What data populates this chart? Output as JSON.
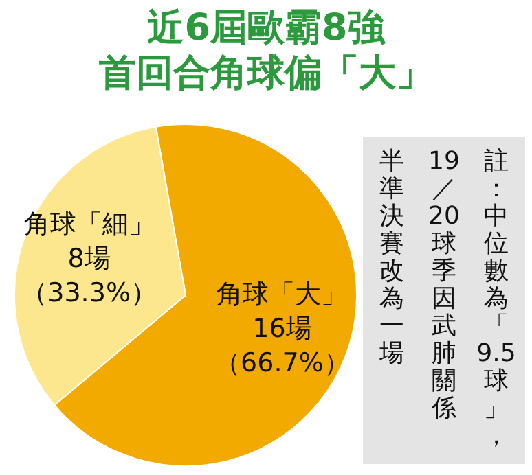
{
  "chart_data": {
    "type": "pie",
    "title": "近6屆歐霸8強",
    "subtitle": "首回合角球偏「大」",
    "categories": [
      "角球「大」",
      "角球「細」"
    ],
    "values": [
      16,
      8
    ],
    "colors": [
      "#f2a900",
      "#fce78e"
    ],
    "value_labels": [
      "16場（66.7%）",
      "8場（33.3%）"
    ],
    "annotations": [
      "註：中位數為「9.5球」，",
      "19／20球季因武肺關係",
      "半準決賽改為一場"
    ],
    "legend": false
  }
}
